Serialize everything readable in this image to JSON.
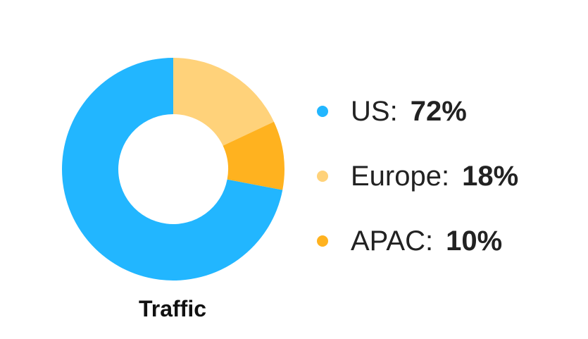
{
  "chart_data": {
    "type": "pie",
    "title": "Traffic",
    "categories": [
      "US",
      "Europe",
      "APAC"
    ],
    "values": [
      72,
      18,
      10
    ],
    "labels": [
      "72%",
      "18%",
      "10%"
    ],
    "colors": [
      "#22b6ff",
      "#ffd27a",
      "#ffb21f"
    ],
    "donut": true,
    "legend_position": "right"
  }
}
